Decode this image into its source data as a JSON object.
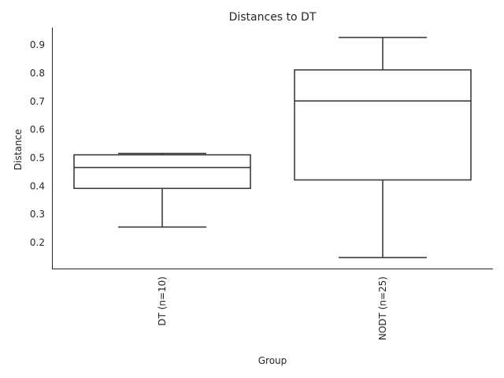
{
  "chart_data": {
    "type": "box",
    "title": "Distances to DT",
    "xlabel": "Group",
    "ylabel": "Distance",
    "categories": [
      "DT (n=10)",
      "NODT (n=25)"
    ],
    "boxes": [
      {
        "category": "DT (n=10)",
        "whisker_low": 0.255,
        "q1": 0.392,
        "median": 0.466,
        "q3": 0.511,
        "whisker_high": 0.516
      },
      {
        "category": "NODT (n=25)",
        "whisker_low": 0.147,
        "q1": 0.422,
        "median": 0.702,
        "q3": 0.812,
        "whisker_high": 0.927
      }
    ],
    "yticks": [
      "0.2",
      "0.3",
      "0.4",
      "0.5",
      "0.6",
      "0.7",
      "0.8",
      "0.9"
    ],
    "ylim": [
      0.108,
      0.962
    ],
    "grid": false,
    "legend": "none",
    "colors": {
      "box_edge": "#3d3d3d",
      "box_fill": "#ffffff",
      "text": "#262626"
    }
  }
}
